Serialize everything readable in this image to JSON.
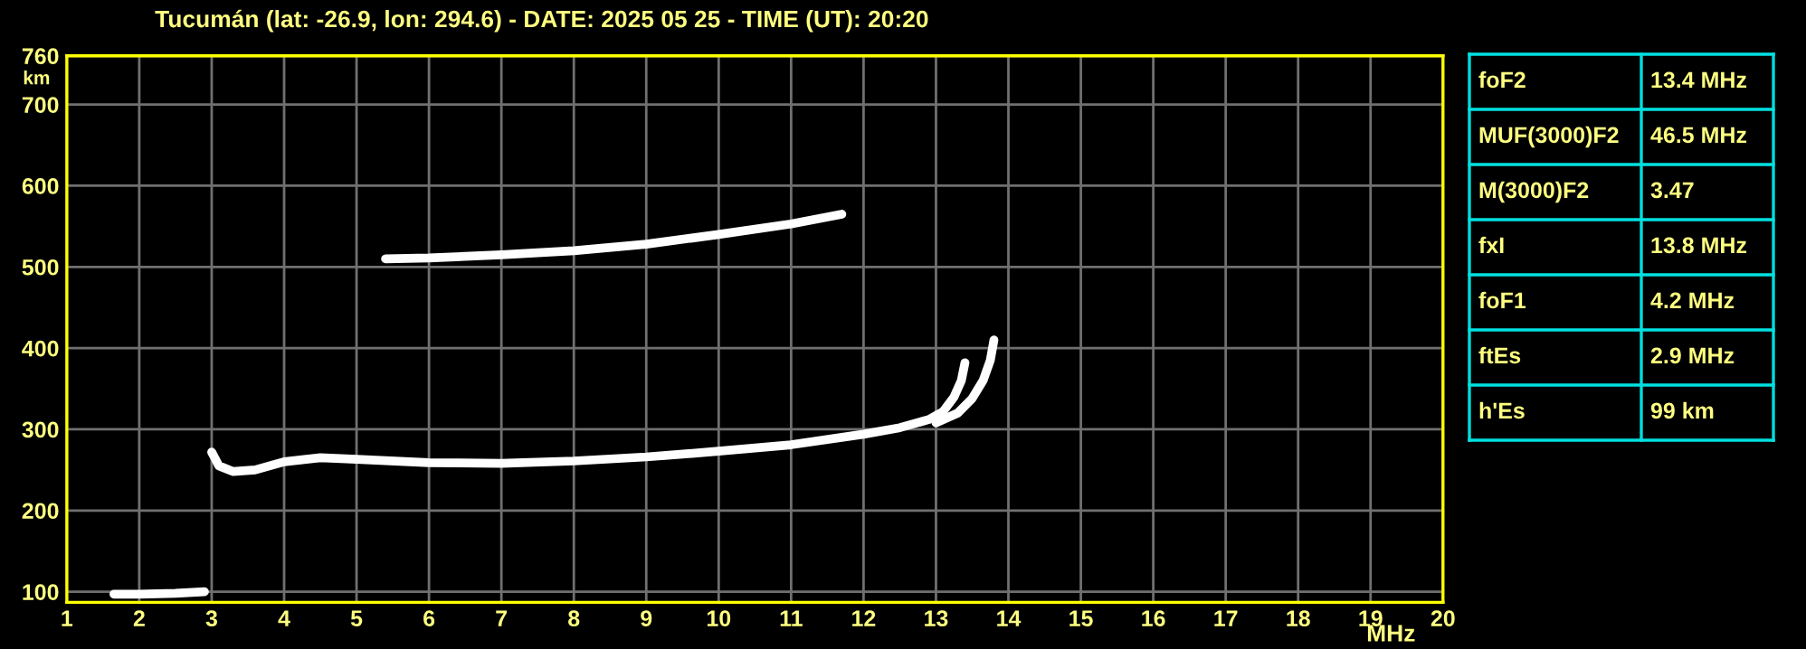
{
  "chart_data": {
    "type": "line",
    "title": "Tucumán (lat: -26.9, lon: 294.6) - DATE: 2025 05 25 - TIME (UT): 20:20",
    "xlabel": "MHz",
    "ylabel": "km",
    "xlim": [
      1,
      20
    ],
    "ylim": [
      87,
      760
    ],
    "xticks": [
      1,
      2,
      3,
      4,
      5,
      6,
      7,
      8,
      9,
      10,
      11,
      12,
      13,
      14,
      15,
      16,
      17,
      18,
      19,
      20
    ],
    "yticks": [
      100,
      200,
      300,
      400,
      500,
      600,
      700,
      760
    ],
    "grid": true,
    "marker": "none",
    "line_style": "solid",
    "series": [
      {
        "color": "#ffffff",
        "x": [
          1.65,
          2.0,
          2.5,
          2.9
        ],
        "values": [
          97,
          97,
          98,
          100
        ]
      },
      {
        "color": "#ffffff",
        "x": [
          3.0,
          3.1,
          3.3,
          3.6,
          4.0,
          4.5,
          5.0,
          6.0,
          7.0,
          8.0,
          9.0,
          10.0,
          11.0,
          12.0,
          12.5,
          12.9,
          13.1,
          13.25,
          13.35,
          13.4
        ],
        "values": [
          272,
          255,
          248,
          250,
          260,
          265,
          263,
          259,
          258,
          261,
          266,
          273,
          281,
          294,
          302,
          312,
          322,
          340,
          360,
          382
        ]
      },
      {
        "color": "#ffffff",
        "x": [
          13.0,
          13.3,
          13.5,
          13.65,
          13.75,
          13.8
        ],
        "values": [
          308,
          320,
          338,
          360,
          385,
          410
        ]
      },
      {
        "color": "#ffffff",
        "x": [
          5.4,
          6.0,
          7.0,
          8.0,
          9.0,
          10.0,
          11.0,
          11.7
        ],
        "values": [
          510,
          511,
          515,
          520,
          528,
          540,
          553,
          565
        ]
      }
    ],
    "annotations": [
      "foF2",
      "13.4 MHz",
      "MUF(3000)F2",
      "46.5 MHz",
      "M(3000)F2",
      "3.47",
      "fxI",
      "13.8 MHz",
      "foF1",
      "4.2 MHz",
      "ftEs",
      "2.9 MHz",
      "h'Es",
      "99 km"
    ]
  }
}
